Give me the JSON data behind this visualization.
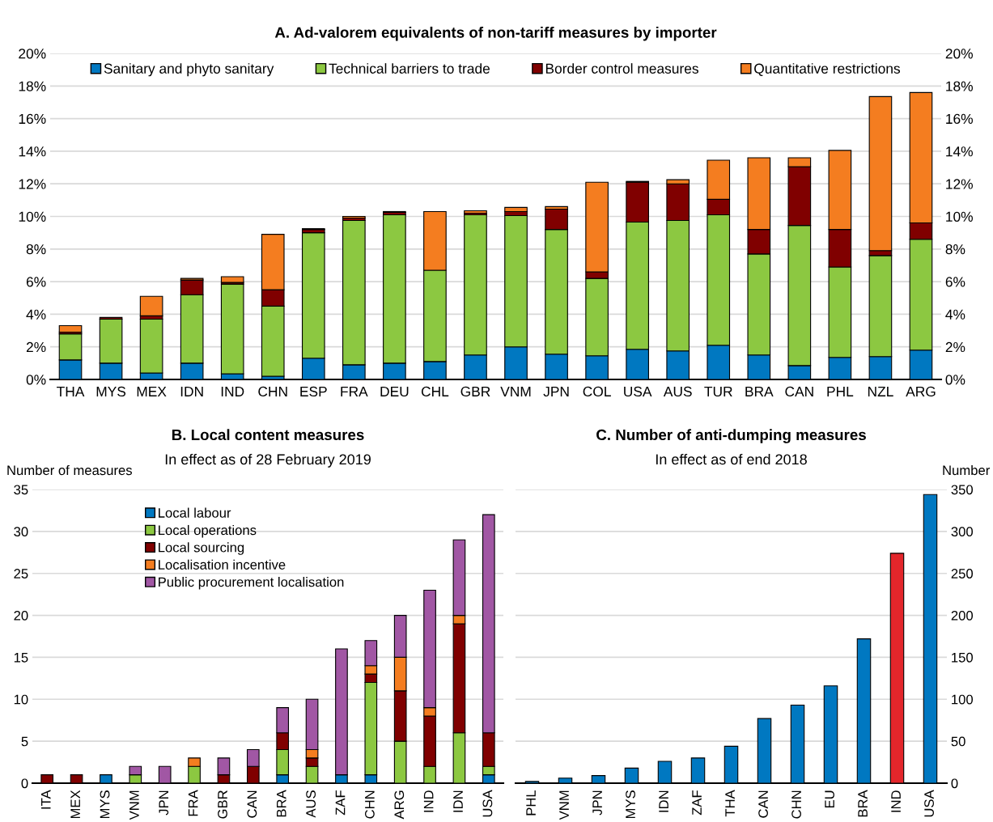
{
  "chart_data": [
    {
      "type": "bar",
      "stacked": true,
      "title": "A. Ad-valorem equivalents of non-tariff measures by importer",
      "categories": [
        "THA",
        "MYS",
        "MEX",
        "IDN",
        "IND",
        "CHN",
        "ESP",
        "FRA",
        "DEU",
        "CHL",
        "GBR",
        "VNM",
        "JPN",
        "COL",
        "USA",
        "AUS",
        "TUR",
        "BRA",
        "CAN",
        "PHL",
        "NZL",
        "ARG"
      ],
      "series": [
        {
          "name": "Sanitary and phyto sanitary",
          "color": "#0078c1",
          "values": [
            1.2,
            1.0,
            0.4,
            1.0,
            0.35,
            0.2,
            1.3,
            0.9,
            1.0,
            1.1,
            1.5,
            2.0,
            1.55,
            1.45,
            1.85,
            1.75,
            2.1,
            1.5,
            0.85,
            1.35,
            1.4,
            1.8
          ]
        },
        {
          "name": "Technical barriers to trade",
          "color": "#8cc841",
          "values": [
            1.6,
            2.7,
            3.3,
            4.2,
            5.5,
            4.3,
            7.7,
            8.85,
            9.1,
            5.6,
            8.6,
            8.05,
            7.65,
            4.75,
            7.8,
            8.0,
            8.0,
            6.2,
            8.6,
            5.55,
            6.2,
            6.8
          ]
        },
        {
          "name": "Border control measures",
          "color": "#800000",
          "values": [
            0.1,
            0.1,
            0.2,
            0.9,
            0.1,
            1.0,
            0.2,
            0.15,
            0.15,
            0,
            0.1,
            0.25,
            1.25,
            0.4,
            2.45,
            2.25,
            0.95,
            1.5,
            3.6,
            2.3,
            0.3,
            1.0
          ]
        },
        {
          "name": "Quantitative restrictions",
          "color": "#f47d20",
          "values": [
            0.4,
            0,
            1.2,
            0.1,
            0.35,
            3.4,
            0.05,
            0.1,
            0.05,
            3.6,
            0.15,
            0.25,
            0.15,
            5.5,
            0.05,
            0.25,
            2.4,
            4.4,
            0.55,
            4.85,
            9.45,
            8.0
          ]
        }
      ],
      "ylim": [
        0,
        20
      ],
      "yticks": [
        {
          "value": 0,
          "label": "0%"
        },
        {
          "value": 2,
          "label": "2%"
        },
        {
          "value": 4,
          "label": "4%"
        },
        {
          "value": 6,
          "label": "6%"
        },
        {
          "value": 8,
          "label": "8%"
        },
        {
          "value": 10,
          "label": "10%"
        },
        {
          "value": 12,
          "label": "12%"
        },
        {
          "value": 14,
          "label": "14%"
        },
        {
          "value": 16,
          "label": "16%"
        },
        {
          "value": 18,
          "label": "18%"
        },
        {
          "value": 20,
          "label": "20%"
        }
      ],
      "y2lim": [
        0,
        20
      ],
      "y2ticks": [
        {
          "value": 0,
          "label": "0%"
        },
        {
          "value": 2,
          "label": "2%"
        },
        {
          "value": 4,
          "label": "4%"
        },
        {
          "value": 6,
          "label": "6%"
        },
        {
          "value": 8,
          "label": "8%"
        },
        {
          "value": 10,
          "label": "10%"
        },
        {
          "value": 12,
          "label": "12%"
        },
        {
          "value": 14,
          "label": "14%"
        },
        {
          "value": 16,
          "label": "16%"
        },
        {
          "value": 18,
          "label": "18%"
        },
        {
          "value": 20,
          "label": "20%"
        }
      ],
      "grid": "y",
      "legend": "top"
    },
    {
      "type": "bar",
      "stacked": true,
      "title": "B. Local content measures",
      "subtitle": "In effect as of 28 February 2019",
      "ylabel": "Number of measures",
      "categories": [
        "ITA",
        "MEX",
        "MYS",
        "VNM",
        "JPN",
        "FRA",
        "GBR",
        "CAN",
        "BRA",
        "AUS",
        "ZAF",
        "CHN",
        "ARG",
        "IND",
        "IDN",
        "USA"
      ],
      "series": [
        {
          "name": "Local labour",
          "color": "#0078c1",
          "values": [
            0,
            0,
            1,
            0,
            0,
            0,
            0,
            0,
            1,
            0,
            1,
            1,
            0,
            0,
            0,
            1
          ]
        },
        {
          "name": "Local operations",
          "color": "#8cc841",
          "values": [
            0,
            0,
            0,
            1,
            0,
            2,
            0,
            0,
            3,
            2,
            0,
            11,
            5,
            2,
            6,
            1
          ]
        },
        {
          "name": "Local sourcing",
          "color": "#800000",
          "values": [
            1,
            1,
            0,
            0,
            0,
            0,
            1,
            2,
            2,
            1,
            0,
            1,
            6,
            6,
            13,
            4
          ]
        },
        {
          "name": "Localisation incentive",
          "color": "#f47d20",
          "values": [
            0,
            0,
            0,
            0,
            0,
            1,
            0,
            0,
            0,
            1,
            0,
            1,
            4,
            1,
            1,
            0
          ]
        },
        {
          "name": "Public procurement localisation",
          "color": "#a157a4",
          "values": [
            0,
            0,
            0,
            1,
            2,
            0,
            2,
            2,
            3,
            6,
            15,
            3,
            5,
            14,
            9,
            26
          ]
        }
      ],
      "ylim": [
        0,
        35
      ],
      "yticks": [
        0,
        5,
        10,
        15,
        20,
        25,
        30,
        35
      ],
      "grid": "y",
      "legend": "top left"
    },
    {
      "type": "bar",
      "title": "C. Number of anti-dumping measures",
      "subtitle": "In effect as of end 2018",
      "ylabel": "Number",
      "categories": [
        "PHL",
        "VNM",
        "JPN",
        "MYS",
        "IDN",
        "ZAF",
        "THA",
        "CAN",
        "CHN",
        "EU",
        "BRA",
        "IND",
        "USA"
      ],
      "values": [
        2,
        6,
        9,
        18,
        26,
        30,
        44,
        77,
        93,
        116,
        172,
        274,
        344
      ],
      "colors": [
        "#0078c1",
        "#0078c1",
        "#0078c1",
        "#0078c1",
        "#0078c1",
        "#0078c1",
        "#0078c1",
        "#0078c1",
        "#0078c1",
        "#0078c1",
        "#0078c1",
        "#e3262b",
        "#0078c1"
      ],
      "ylim": [
        0,
        350
      ],
      "yticks": [
        0,
        50,
        100,
        150,
        200,
        250,
        300,
        350
      ],
      "grid": "y"
    }
  ]
}
